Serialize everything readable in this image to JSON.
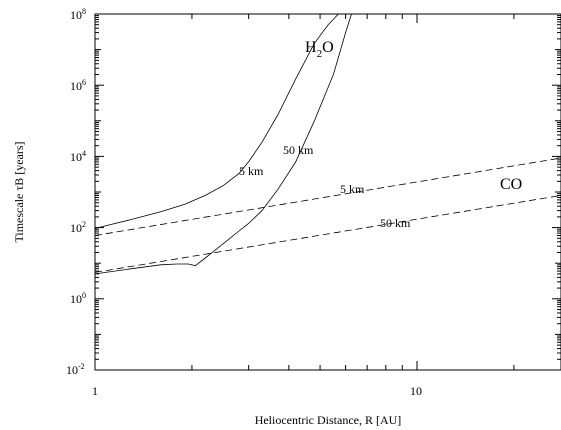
{
  "chart_data": {
    "type": "line",
    "title": "",
    "xlabel": "Heliocentric Distance, R [AU]",
    "ylabel": "Timescale τB [years]",
    "xscale": "log",
    "yscale": "log",
    "xlim": [
      1,
      28
    ],
    "ylim": [
      0.01,
      100000000
    ],
    "x_tick_labels": [
      "1",
      "10"
    ],
    "y_tick_labels": [
      {
        "base": "10",
        "exp": "-2"
      },
      {
        "base": "10",
        "exp": "0"
      },
      {
        "base": "10",
        "exp": "2"
      },
      {
        "base": "10",
        "exp": "4"
      },
      {
        "base": "10",
        "exp": "6"
      },
      {
        "base": "10",
        "exp": "8"
      }
    ],
    "grid": false,
    "legend": "none",
    "species_labels": {
      "h2o": {
        "main": "H",
        "sub": "2",
        "tail": "O"
      },
      "co": "CO"
    },
    "series": [
      {
        "label": "5 km",
        "species": "H2O",
        "style": "solid",
        "x": [
          1.0,
          1.3,
          1.6,
          1.9,
          2.2,
          2.5,
          2.8,
          3.0,
          3.3,
          3.7,
          4.2,
          4.8,
          5.3,
          5.7,
          6.0
        ],
        "y": [
          95,
          170,
          280,
          450,
          800,
          1500,
          3300,
          7000,
          25000,
          150000,
          1500000,
          15000000,
          50000000,
          100000000,
          120000000
        ]
      },
      {
        "label": "50 km",
        "species": "H2O",
        "style": "solid",
        "x": [
          1.0,
          1.3,
          1.6,
          1.8,
          1.95,
          2.05,
          2.2,
          2.5,
          2.8,
          3.0,
          3.3,
          3.7,
          4.2,
          4.8,
          5.5,
          6.0,
          6.3
        ],
        "y": [
          5,
          7,
          9,
          9.5,
          9.5,
          8.5,
          14,
          35,
          80,
          130,
          300,
          1200,
          7000,
          100000,
          2000000,
          30000000,
          120000000
        ]
      },
      {
        "label": "5 km",
        "species": "CO",
        "style": "dashed",
        "x": [
          1,
          28
        ],
        "y": [
          60,
          9000
        ]
      },
      {
        "label": "50 km",
        "species": "CO",
        "style": "dashed",
        "x": [
          1,
          28
        ],
        "y": [
          5.5,
          800
        ]
      }
    ]
  }
}
